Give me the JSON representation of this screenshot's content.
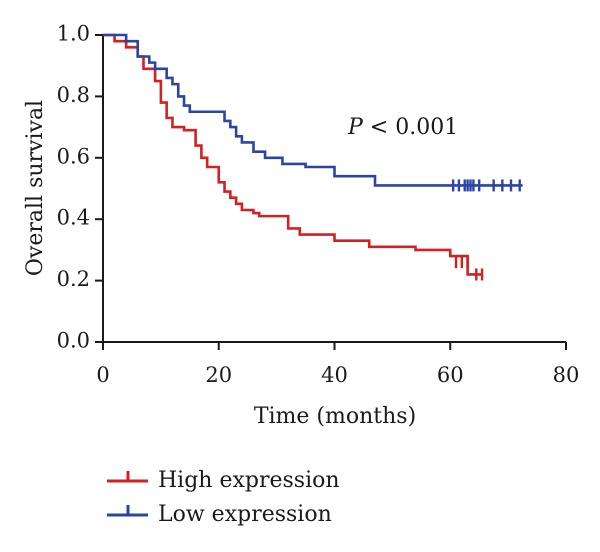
{
  "chart_data": {
    "type": "line",
    "subtype": "kaplan-meier",
    "title": "",
    "xlabel": "Time (months)",
    "ylabel": "Overall survival",
    "xlim": [
      0,
      80
    ],
    "ylim": [
      0,
      1
    ],
    "xticks": [
      0,
      20,
      40,
      60,
      80
    ],
    "xtick_labels": [
      "0",
      "20",
      "40",
      "60",
      "80"
    ],
    "yticks": [
      0,
      0.2,
      0.4,
      0.6,
      0.8,
      1.0
    ],
    "ytick_labels": [
      "0.0",
      "0.2",
      "0.4",
      "0.6",
      "0.8",
      "1.0"
    ],
    "grid": false,
    "legend_position": "bottom-left",
    "annotation": {
      "italic": "P",
      "rest": " < 0.001"
    },
    "series": [
      {
        "name": "High expression",
        "color": "#d42020",
        "x": [
          0,
          2,
          4,
          6,
          7,
          9,
          10,
          11,
          12,
          14,
          16,
          17,
          18,
          20,
          21,
          22,
          23,
          24,
          26,
          27,
          32,
          34,
          40,
          46,
          54,
          60,
          63,
          65.5
        ],
        "y": [
          1.0,
          0.98,
          0.96,
          0.93,
          0.89,
          0.85,
          0.78,
          0.73,
          0.7,
          0.69,
          0.64,
          0.6,
          0.57,
          0.52,
          0.49,
          0.47,
          0.45,
          0.43,
          0.42,
          0.41,
          0.37,
          0.35,
          0.33,
          0.31,
          0.3,
          0.28,
          0.22,
          0.22
        ],
        "censor_x": [
          61,
          62,
          63,
          64.5,
          65.5
        ],
        "censor_y": [
          0.26,
          0.26,
          0.26,
          0.22,
          0.22
        ]
      },
      {
        "name": "Low expression",
        "color": "#2b45a6",
        "x": [
          0,
          4,
          6,
          8,
          9,
          11,
          12,
          13,
          14,
          15,
          21,
          22,
          23,
          24,
          26,
          28,
          31,
          35,
          40,
          47,
          72.5
        ],
        "y": [
          1.0,
          0.98,
          0.93,
          0.91,
          0.89,
          0.86,
          0.84,
          0.8,
          0.77,
          0.75,
          0.72,
          0.7,
          0.67,
          0.65,
          0.62,
          0.6,
          0.58,
          0.57,
          0.54,
          0.51,
          0.51
        ],
        "censor_x": [
          60.5,
          61.5,
          62.5,
          63,
          63.5,
          64,
          65,
          67.5,
          69,
          70.5,
          72
        ],
        "censor_y": [
          0.51,
          0.51,
          0.51,
          0.51,
          0.51,
          0.51,
          0.51,
          0.51,
          0.51,
          0.51,
          0.51
        ]
      }
    ]
  }
}
